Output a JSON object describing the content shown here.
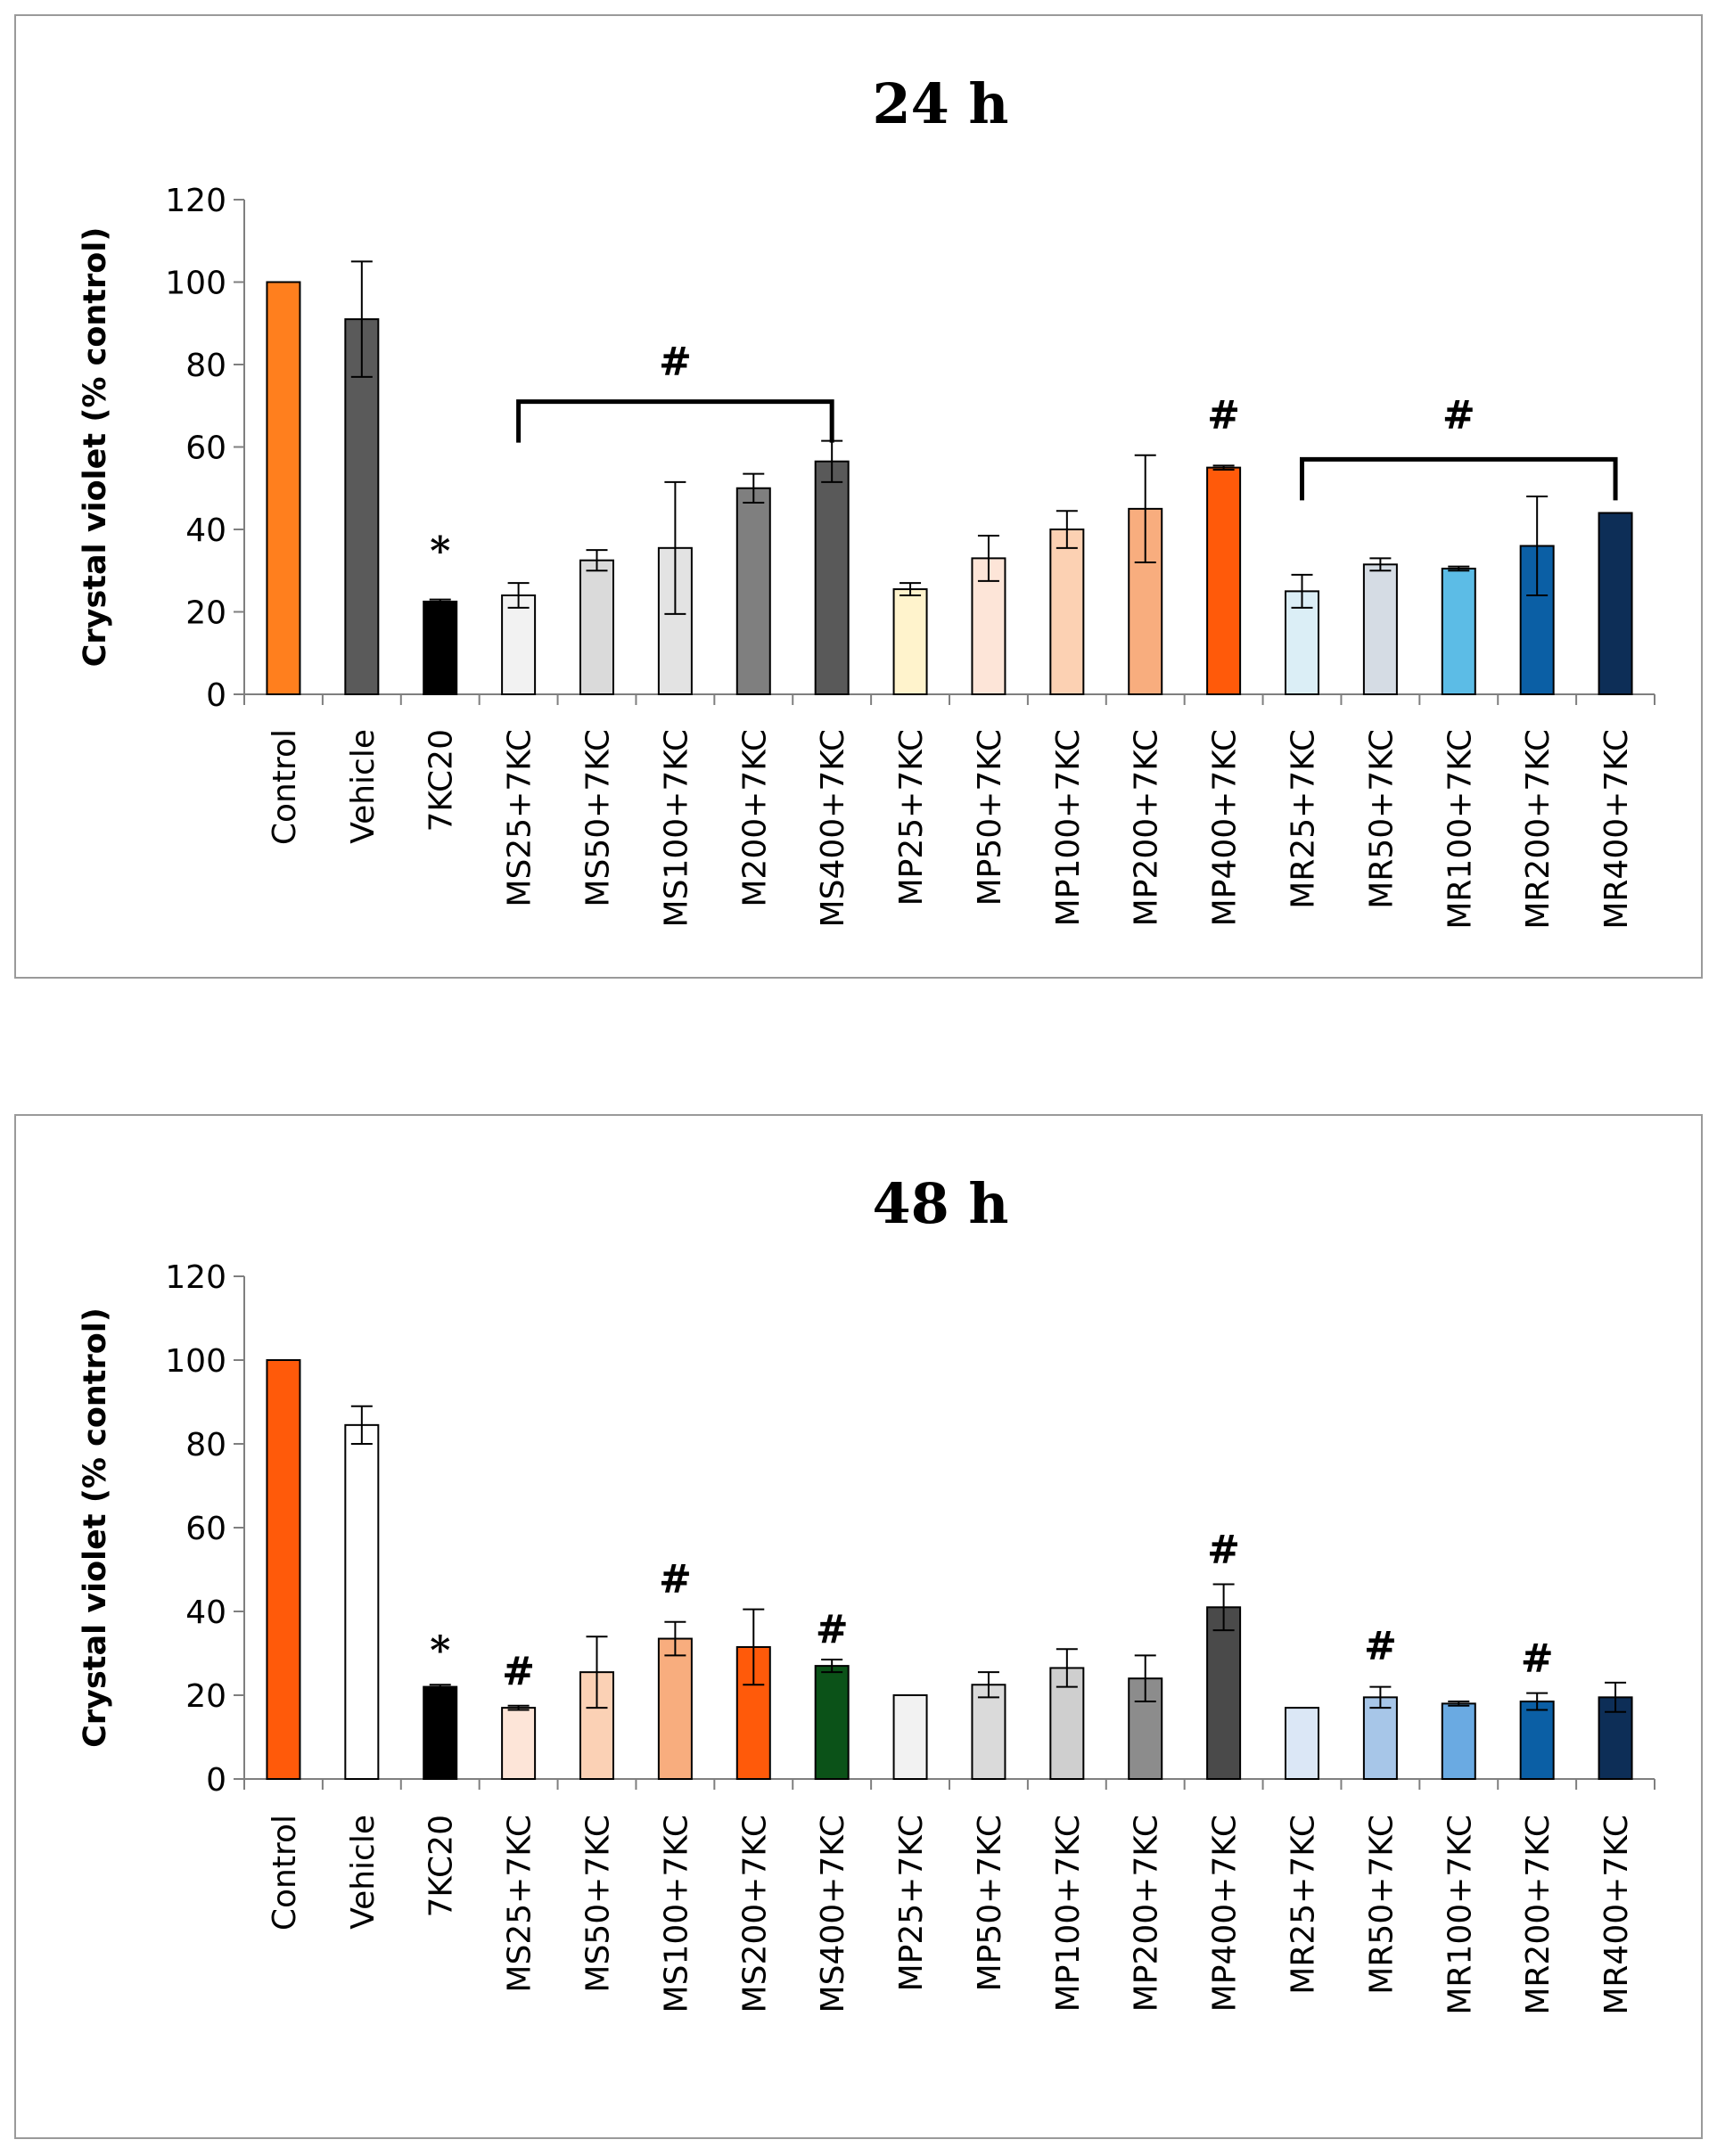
{
  "chart_data": [
    {
      "type": "bar",
      "title": "24 h",
      "xlabel": "",
      "ylabel": "Crystal violet (% control)",
      "ylim": [
        0,
        120
      ],
      "yticks": [
        0,
        20,
        40,
        60,
        80,
        100,
        120
      ],
      "categories": [
        "Control",
        "Vehicle",
        "7KC20",
        "MS25+7KC",
        "MS50+7KC",
        "MS100+7KC",
        "M200+7KC",
        "MS400+7KC",
        "MP25+7KC",
        "MP50+7KC",
        "MP100+7KC",
        "MP200+7KC",
        "MP400+7KC",
        "MR25+7KC",
        "MR50+7KC",
        "MR100+7KC",
        "MR200+7KC",
        "MR400+7KC"
      ],
      "values": [
        100,
        91,
        22.5,
        24,
        32.5,
        35.5,
        50,
        56.5,
        25.5,
        33,
        40,
        45,
        55,
        25,
        31.5,
        30.5,
        36,
        44
      ],
      "errors": [
        0,
        14,
        0.5,
        3,
        2.5,
        16,
        3.5,
        5,
        1.5,
        5.5,
        4.5,
        13,
        0.5,
        4,
        1.5,
        0.5,
        12,
        0
      ],
      "colors": [
        "#ff7f1e",
        "#5a5a5a",
        "#000000",
        "#f2f2f2",
        "#dadada",
        "#e3e3e3",
        "#7f7f7f",
        "#595959",
        "#fff3cc",
        "#fde5d8",
        "#fcd1b3",
        "#f8ad7e",
        "#ff5a0a",
        "#dbeef6",
        "#d5dce4",
        "#5cbce6",
        "#0b5fa5",
        "#0d2e57"
      ],
      "markers": [
        {
          "text": "*",
          "at": 2,
          "value": 35
        },
        {
          "text": "#",
          "from": 3,
          "to": 7,
          "bracket_value": 71,
          "label_value": 81
        },
        {
          "text": "#",
          "at": 12,
          "value": 68
        },
        {
          "text": "#",
          "from": 13,
          "to": 17,
          "bracket_value": 57,
          "label_value": 68
        }
      ]
    },
    {
      "type": "bar",
      "title": "48 h",
      "xlabel": "",
      "ylabel": "Crystal violet (% control)",
      "ylim": [
        0,
        120
      ],
      "yticks": [
        0,
        20,
        40,
        60,
        80,
        100,
        120
      ],
      "categories": [
        "Control",
        "Vehicle",
        "7KC20",
        "MS25+7KC",
        "MS50+7KC",
        "MS100+7KC",
        "MS200+7KC",
        "MS400+7KC",
        "MP25+7KC",
        "MP50+7KC",
        "MP100+7KC",
        "MP200+7KC",
        "MP400+7KC",
        "MR25+7KC",
        "MR50+7KC",
        "MR100+7KC",
        "MR200+7KC",
        "MR400+7KC"
      ],
      "values": [
        100,
        84.5,
        22,
        17,
        25.5,
        33.5,
        31.5,
        27,
        20,
        22.5,
        26.5,
        24,
        41,
        17,
        19.5,
        18,
        18.5,
        19.5
      ],
      "errors": [
        0,
        4.5,
        0.5,
        0.5,
        8.5,
        4,
        9,
        1.5,
        0,
        3,
        4.5,
        5.5,
        5.5,
        0,
        2.5,
        0.5,
        2,
        3.5
      ],
      "colors": [
        "#ff5a0a",
        "#ffffff",
        "#000000",
        "#fde5d8",
        "#fbd1b5",
        "#f8ad7e",
        "#ff5a0a",
        "#0b5218",
        "#f2f2f2",
        "#dadada",
        "#cfcfcf",
        "#8c8c8c",
        "#4a4a4a",
        "#dbe7f6",
        "#a7c6e8",
        "#6aaae2",
        "#0b5fa5",
        "#0d2e57"
      ],
      "markers": [
        {
          "text": "*",
          "at": 2,
          "value": 31
        },
        {
          "text": "#",
          "at": 3,
          "value": 26
        },
        {
          "text": "#",
          "at": 5,
          "value": 48
        },
        {
          "text": "#",
          "at": 7,
          "value": 36
        },
        {
          "text": "#",
          "at": 12,
          "value": 55
        },
        {
          "text": "#",
          "at": 14,
          "value": 32
        },
        {
          "text": "#",
          "at": 16,
          "value": 29
        }
      ]
    }
  ]
}
